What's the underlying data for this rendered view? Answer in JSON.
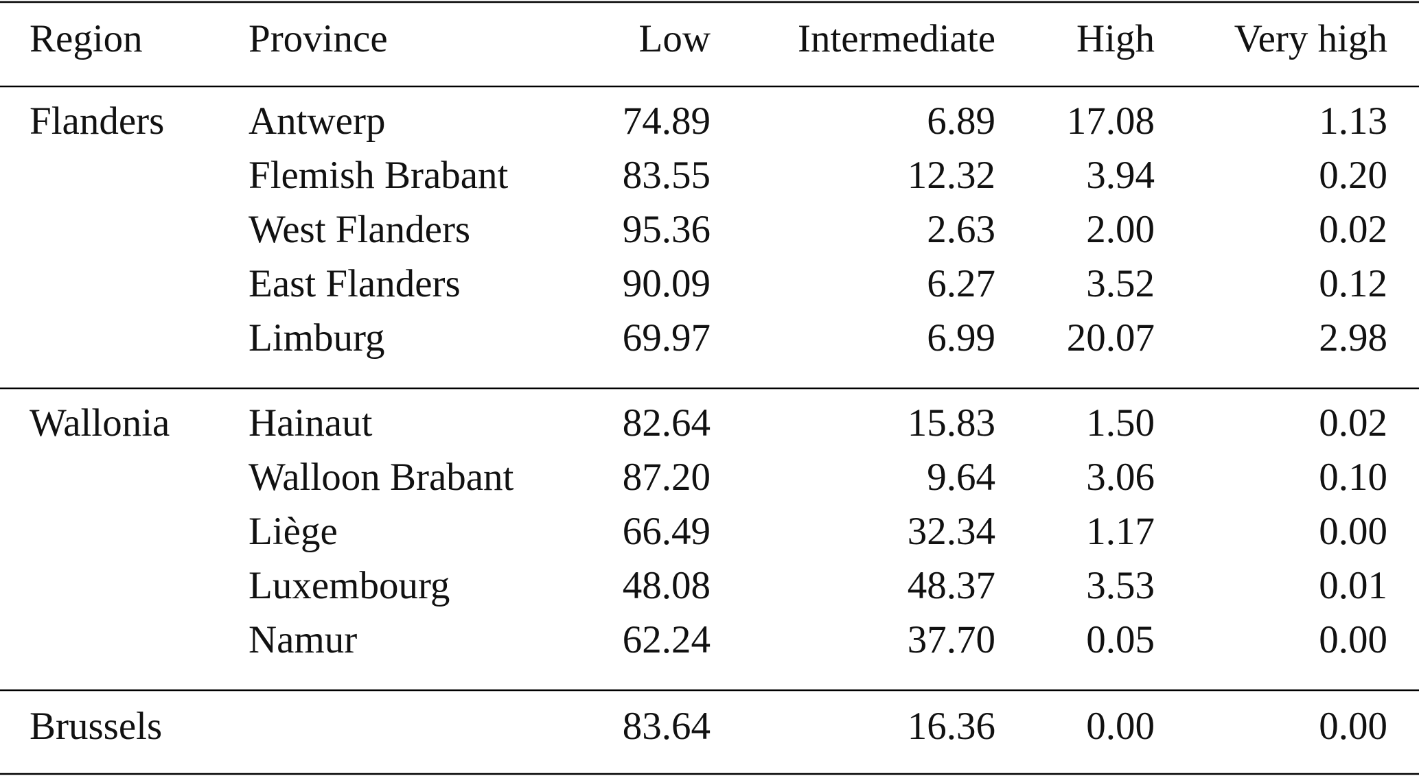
{
  "table": {
    "header": [
      "Region",
      "Province",
      "Low",
      "Intermediate",
      "High",
      "Very high"
    ],
    "groups": [
      {
        "region": "Flanders",
        "rows": [
          {
            "province": "Antwerp",
            "values": [
              "74.89",
              "6.89",
              "17.08",
              "1.13"
            ]
          },
          {
            "province": "Flemish Brabant",
            "values": [
              "83.55",
              "12.32",
              "3.94",
              "0.20"
            ]
          },
          {
            "province": "West Flanders",
            "values": [
              "95.36",
              "2.63",
              "2.00",
              "0.02"
            ]
          },
          {
            "province": "East Flanders",
            "values": [
              "90.09",
              "6.27",
              "3.52",
              "0.12"
            ]
          },
          {
            "province": "Limburg",
            "values": [
              "69.97",
              "6.99",
              "20.07",
              "2.98"
            ]
          }
        ]
      },
      {
        "region": "Wallonia",
        "rows": [
          {
            "province": "Hainaut",
            "values": [
              "82.64",
              "15.83",
              "1.50",
              "0.02"
            ]
          },
          {
            "province": "Walloon Brabant",
            "values": [
              "87.20",
              "9.64",
              "3.06",
              "0.10"
            ]
          },
          {
            "province": "Liège",
            "values": [
              "66.49",
              "32.34",
              "1.17",
              "0.00"
            ]
          },
          {
            "province": "Luxembourg",
            "values": [
              "48.08",
              "48.37",
              "3.53",
              "0.01"
            ]
          },
          {
            "province": "Namur",
            "values": [
              "62.24",
              "37.70",
              "0.05",
              "0.00"
            ]
          }
        ]
      },
      {
        "region": "Brussels",
        "rows": [
          {
            "values": [
              "83.64",
              "16.36",
              "0.00",
              "0.00"
            ]
          }
        ]
      }
    ]
  }
}
